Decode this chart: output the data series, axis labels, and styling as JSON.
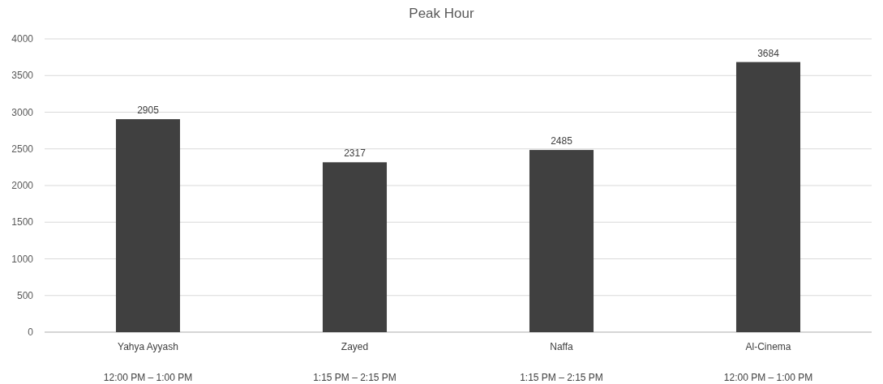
{
  "chart_data": {
    "type": "bar",
    "title": "Peak Hour",
    "categories": [
      "Yahya Ayyash\n12:00 PM – 1:00 PM",
      "Zayed\n1:15 PM – 2:15 PM",
      "Naffa\n1:15 PM – 2:15 PM",
      "Al-Cinema\n12:00 PM – 1:00 PM"
    ],
    "values": [
      2905,
      2317,
      2485,
      3684
    ],
    "color": "#404040",
    "ylim": [
      0,
      4000
    ],
    "yticks": [
      0,
      500,
      1000,
      1500,
      2000,
      2500,
      3000,
      3500,
      4000
    ],
    "grid": "y",
    "data_labels": true
  }
}
